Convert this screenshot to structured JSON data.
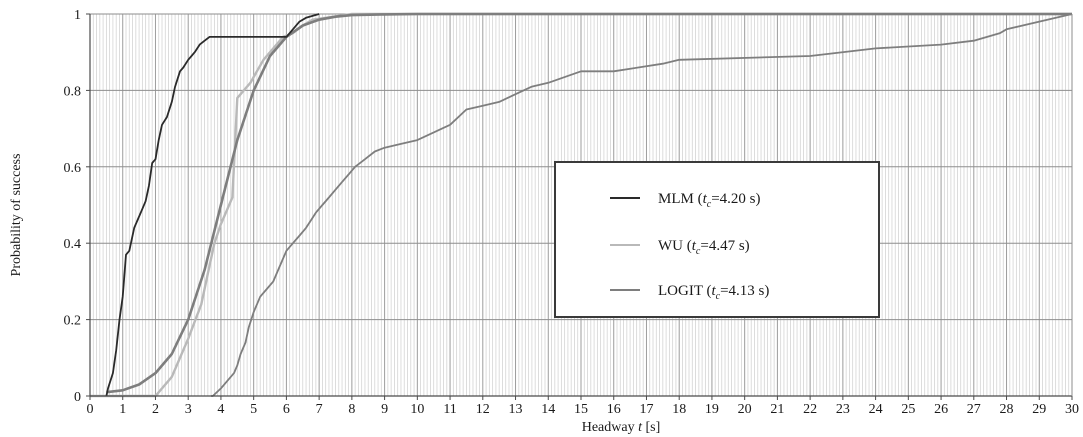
{
  "chart_data": {
    "type": "line",
    "xlabel_prefix": "Headway ",
    "xlabel_var": "t",
    "xlabel_suffix": " [s]",
    "ylabel": "Probability of success",
    "xlim": [
      0,
      30
    ],
    "ylim": [
      0,
      1
    ],
    "x_ticks": [
      "0",
      "1",
      "2",
      "3",
      "4",
      "5",
      "6",
      "7",
      "8",
      "9",
      "10",
      "11",
      "12",
      "13",
      "14",
      "15",
      "16",
      "17",
      "18",
      "19",
      "20",
      "21",
      "22",
      "23",
      "24",
      "25",
      "26",
      "27",
      "28",
      "29",
      "30"
    ],
    "y_ticks": [
      "0",
      "0.2",
      "0.4",
      "0.6",
      "0.8",
      "1"
    ],
    "grid": true,
    "legend_position": "center-right",
    "series": [
      {
        "name": "MLM",
        "legend_label": {
          "prefix": "MLM  (",
          "var": "t",
          "sub": "c",
          "suffix": "=4.20 s)"
        },
        "color": "#2a2a2a",
        "x": [
          0.5,
          0.55,
          0.7,
          0.8,
          0.9,
          1.0,
          1.1,
          1.2,
          1.35,
          1.5,
          1.6,
          1.7,
          1.8,
          1.9,
          2.0,
          2.1,
          2.2,
          2.35,
          2.5,
          2.6,
          2.75,
          2.85,
          3.0,
          3.1,
          3.2,
          3.35,
          3.5,
          3.65,
          4.0,
          4.5,
          5.0,
          5.5,
          6.0,
          6.2,
          6.4,
          6.6,
          7.0
        ],
        "y": [
          0.0,
          0.02,
          0.06,
          0.12,
          0.2,
          0.26,
          0.37,
          0.38,
          0.44,
          0.47,
          0.49,
          0.51,
          0.55,
          0.61,
          0.62,
          0.67,
          0.71,
          0.73,
          0.77,
          0.81,
          0.85,
          0.86,
          0.88,
          0.89,
          0.9,
          0.92,
          0.93,
          0.94,
          0.94,
          0.94,
          0.94,
          0.94,
          0.94,
          0.96,
          0.98,
          0.99,
          1.0
        ]
      },
      {
        "name": "WU",
        "legend_label": {
          "prefix": "WU (",
          "var": "t",
          "sub": "c",
          "suffix": "=4.47 s)"
        },
        "color": "#b9b9b9",
        "x": [
          0.0,
          1.5,
          2.0,
          2.5,
          3.0,
          3.4,
          3.6,
          3.8,
          4.0,
          4.2,
          4.35,
          4.5,
          4.6,
          4.7,
          4.9,
          5.1,
          5.3,
          5.6,
          5.9,
          6.2,
          6.5,
          6.8,
          7.2,
          7.6,
          8.0,
          9.0,
          30.0
        ],
        "y": [
          0.0,
          0.0,
          0.0,
          0.05,
          0.15,
          0.24,
          0.32,
          0.4,
          0.45,
          0.49,
          0.52,
          0.78,
          0.79,
          0.8,
          0.82,
          0.85,
          0.88,
          0.91,
          0.94,
          0.95,
          0.97,
          0.985,
          0.99,
          0.995,
          1.0,
          1.0,
          1.0
        ]
      },
      {
        "name": "LOGIT",
        "legend_label": {
          "prefix": "LOGIT (",
          "var": "t",
          "sub": "c",
          "suffix": "=4.13 s)"
        },
        "color": "#7e7e7e",
        "x": [
          0.5,
          1.0,
          1.5,
          2.0,
          2.5,
          3.0,
          3.5,
          4.0,
          4.5,
          5.0,
          5.5,
          6.0,
          6.5,
          7.0,
          7.5,
          8.0,
          9.0,
          10.0,
          30.0
        ],
        "y": [
          0.01,
          0.015,
          0.03,
          0.06,
          0.11,
          0.2,
          0.33,
          0.5,
          0.67,
          0.8,
          0.89,
          0.94,
          0.97,
          0.985,
          0.993,
          0.997,
          0.999,
          1.0,
          1.0
        ]
      },
      {
        "name": "",
        "color": "#7e7e7e",
        "x": [
          3.7,
          3.75,
          4.0,
          4.2,
          4.4,
          4.5,
          4.6,
          4.75,
          4.85,
          5.0,
          5.2,
          5.4,
          5.6,
          5.75,
          5.9,
          6.0,
          6.2,
          6.4,
          6.6,
          6.75,
          6.9,
          7.1,
          7.3,
          7.5,
          7.7,
          7.9,
          8.1,
          8.4,
          8.7,
          9.0,
          9.5,
          10.0,
          10.5,
          11.0,
          11.5,
          12.0,
          12.5,
          13.0,
          13.5,
          14.0,
          15.0,
          16.0,
          17.5,
          18.0,
          22.0,
          24.0,
          26.0,
          27.0,
          27.8,
          28.0,
          29.0,
          30.0
        ],
        "y": [
          0.0,
          0.0,
          0.02,
          0.04,
          0.06,
          0.08,
          0.11,
          0.14,
          0.18,
          0.22,
          0.26,
          0.28,
          0.3,
          0.33,
          0.36,
          0.38,
          0.4,
          0.42,
          0.44,
          0.46,
          0.48,
          0.5,
          0.52,
          0.54,
          0.56,
          0.58,
          0.6,
          0.62,
          0.64,
          0.65,
          0.66,
          0.67,
          0.69,
          0.71,
          0.75,
          0.76,
          0.77,
          0.79,
          0.81,
          0.82,
          0.85,
          0.85,
          0.87,
          0.88,
          0.89,
          0.91,
          0.92,
          0.93,
          0.95,
          0.96,
          0.98,
          1.0
        ]
      }
    ]
  }
}
